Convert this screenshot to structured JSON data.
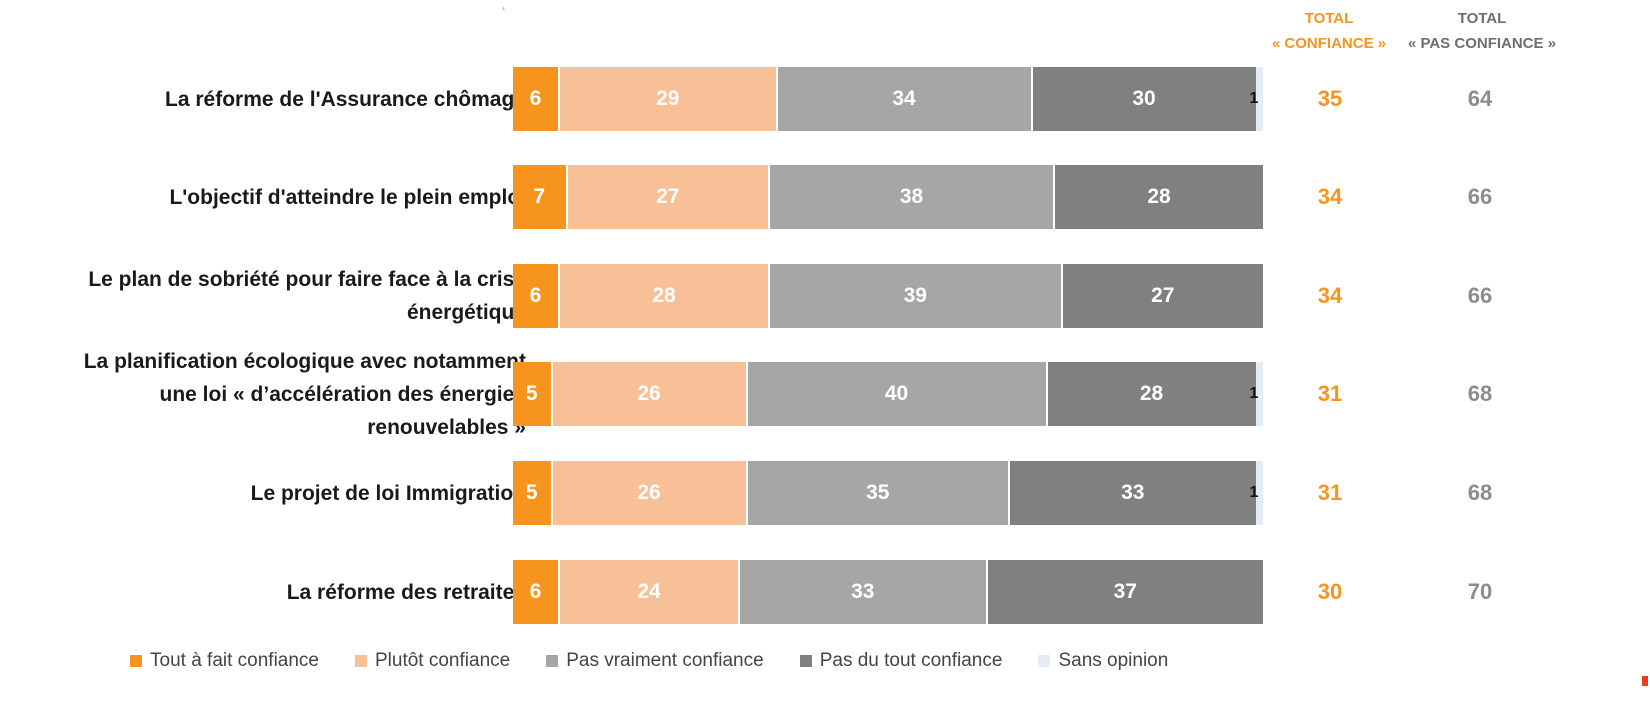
{
  "colors": {
    "tout_a_fait": "#f7941d",
    "plutot": "#f8c096",
    "pas_vraiment": "#a6a6a6",
    "pas_du_tout": "#808080",
    "sans_opinion": "#e6ecf5",
    "total_confiance_text": "#f7941d",
    "total_pas_confiance_text": "#8c8c8c"
  },
  "headers": {
    "total_confiance_1": "TOTAL",
    "total_confiance_2": "« CONFIANCE »",
    "total_pas_confiance_1": "TOTAL",
    "total_pas_confiance_2": "« PAS CONFIANCE »"
  },
  "chart_data": {
    "type": "bar",
    "orientation": "horizontal",
    "stacked": true,
    "legend_position": "bottom",
    "categories": [
      "La réforme de l'Assurance chômage",
      "L'objectif d'atteindre le plein emploi",
      "Le plan de sobriété pour faire face à la crise énergétique",
      "La planification écologique avec notamment une loi « d’accélération des énergies renouvelables »",
      "Le projet de loi Immigration",
      "La réforme des retraites"
    ],
    "category_lines": [
      [
        "La réforme de l'Assurance chômage"
      ],
      [
        "L'objectif d'atteindre le plein emploi"
      ],
      [
        "Le plan de sobriété pour faire face à la crise",
        "énergétique"
      ],
      [
        "La planification écologique avec notamment",
        "une loi « d’accélération des énergies",
        "renouvelables »"
      ],
      [
        "Le projet de loi Immigration"
      ],
      [
        "La réforme des retraites"
      ]
    ],
    "series": [
      {
        "name": "Tout à fait confiance",
        "values": [
          6,
          7,
          6,
          5,
          5,
          6
        ]
      },
      {
        "name": "Plutôt confiance",
        "values": [
          29,
          27,
          28,
          26,
          26,
          24
        ]
      },
      {
        "name": "Pas vraiment confiance",
        "values": [
          34,
          38,
          39,
          40,
          35,
          33
        ]
      },
      {
        "name": "Pas du tout confiance",
        "values": [
          30,
          28,
          27,
          28,
          33,
          37
        ]
      },
      {
        "name": "Sans opinion",
        "values": [
          1,
          0,
          0,
          1,
          1,
          0
        ]
      }
    ],
    "total_confiance": [
      35,
      34,
      34,
      31,
      31,
      30
    ],
    "total_pas_confiance": [
      64,
      66,
      66,
      68,
      68,
      70
    ],
    "xlim": [
      0,
      100
    ]
  }
}
